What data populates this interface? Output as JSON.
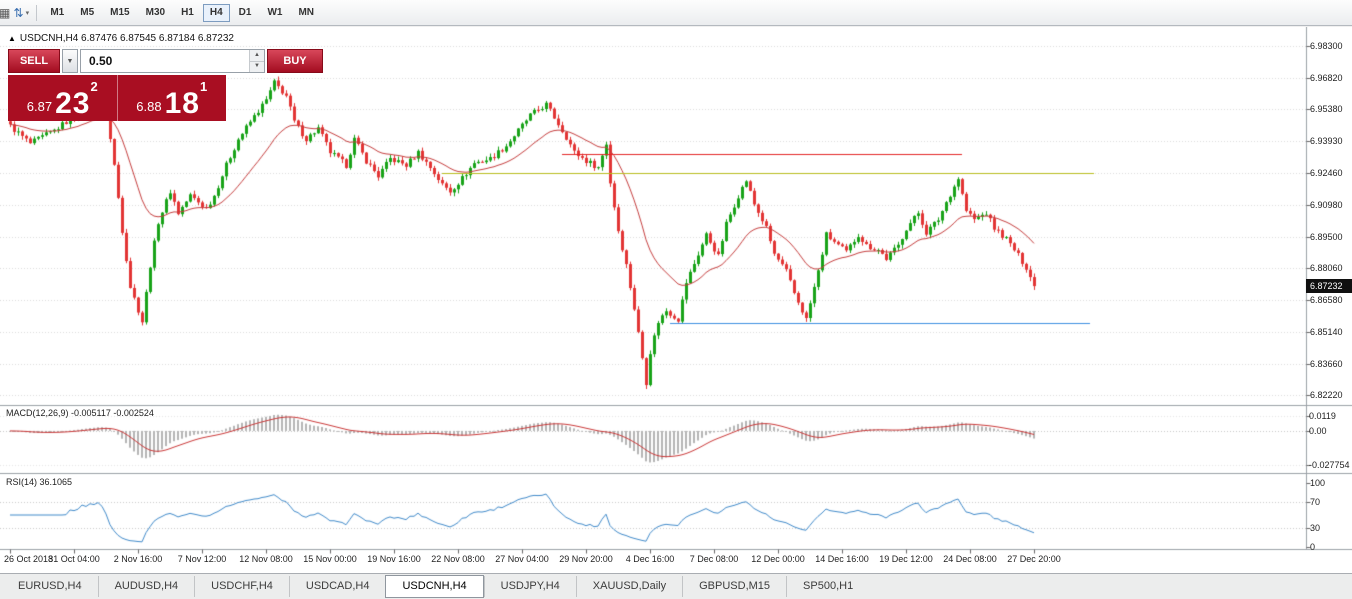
{
  "toolbar": {
    "icons": {
      "templates_glyph": "▦",
      "cursor_glyph": "⇅",
      "caret_glyph": "▾"
    },
    "timeframes": [
      {
        "label": "M1"
      },
      {
        "label": "M5"
      },
      {
        "label": "M15"
      },
      {
        "label": "M30"
      },
      {
        "label": "H1"
      },
      {
        "label": "H4",
        "active": true
      },
      {
        "label": "D1"
      },
      {
        "label": "W1"
      },
      {
        "label": "MN"
      }
    ]
  },
  "chart": {
    "symbol_marker": "▲",
    "title": "USDCNH,H4 6.87476 6.87545 6.87184 6.87232",
    "current_price": "6.87232"
  },
  "trade_panel": {
    "sell_label": "SELL",
    "buy_label": "BUY",
    "volume": "0.50",
    "caret_glyph": "▼",
    "spinner_up": "▲",
    "spinner_down": "▼",
    "bid": {
      "small": "6.87",
      "big": "23",
      "sup": "2"
    },
    "ask": {
      "small": "6.88",
      "big": "18",
      "sup": "1"
    }
  },
  "colors": {
    "candle_up": "#18a318",
    "candle_down": "#e23434",
    "ma_line": "#c43c3c",
    "macd_histogram": "#b5b5b5",
    "macd_signal": "#c93636",
    "rsi_line": "#3f89c9",
    "grid": "#dadada",
    "hline_red": "#e32525",
    "hline_yellow": "#b9bd1d",
    "hline_blue": "#3d8fe0",
    "panel_red": "#a90e22"
  },
  "chart_data": {
    "type": "candlestick",
    "title": "USDCNH,H4",
    "ohlc": {
      "open": 6.87476,
      "high": 6.87545,
      "low": 6.87184,
      "close": 6.87232
    },
    "last_close": 6.87232,
    "num_candles": 257,
    "ylim": [
      6.818,
      6.988
    ],
    "price_ticks": [
      "6.98300",
      "6.96820",
      "6.95380",
      "6.93930",
      "6.92460",
      "6.90980",
      "6.89500",
      "6.88060",
      "6.86580",
      "6.85140",
      "6.83660",
      "6.82220"
    ],
    "close_anchors": [
      [
        0,
        6.946
      ],
      [
        5,
        6.938
      ],
      [
        11,
        6.944
      ],
      [
        17,
        6.952
      ],
      [
        22,
        6.958
      ],
      [
        24,
        6.952
      ],
      [
        26,
        6.928
      ],
      [
        28,
        6.898
      ],
      [
        30,
        6.872
      ],
      [
        33,
        6.856
      ],
      [
        35,
        6.882
      ],
      [
        37,
        6.902
      ],
      [
        40,
        6.916
      ],
      [
        42,
        6.906
      ],
      [
        45,
        6.914
      ],
      [
        49,
        6.908
      ],
      [
        51,
        6.914
      ],
      [
        54,
        6.928
      ],
      [
        57,
        6.94
      ],
      [
        60,
        6.948
      ],
      [
        64,
        6.958
      ],
      [
        66,
        6.966
      ],
      [
        69,
        6.96
      ],
      [
        71,
        6.948
      ],
      [
        74,
        6.94
      ],
      [
        77,
        6.945
      ],
      [
        80,
        6.934
      ],
      [
        84,
        6.928
      ],
      [
        86,
        6.94
      ],
      [
        89,
        6.93
      ],
      [
        92,
        6.923
      ],
      [
        95,
        6.931
      ],
      [
        99,
        6.928
      ],
      [
        102,
        6.934
      ],
      [
        105,
        6.927
      ],
      [
        108,
        6.919
      ],
      [
        110,
        6.916
      ],
      [
        113,
        6.922
      ],
      [
        116,
        6.929
      ],
      [
        120,
        6.931
      ],
      [
        124,
        6.937
      ],
      [
        127,
        6.944
      ],
      [
        130,
        6.951
      ],
      [
        134,
        6.956
      ],
      [
        136,
        6.95
      ],
      [
        139,
        6.941
      ],
      [
        141,
        6.934
      ],
      [
        144,
        6.93
      ],
      [
        147,
        6.927
      ],
      [
        149,
        6.938
      ],
      [
        150,
        6.92
      ],
      [
        152,
        6.898
      ],
      [
        154,
        6.882
      ],
      [
        156,
        6.862
      ],
      [
        159,
        6.828
      ],
      [
        160,
        6.842
      ],
      [
        162,
        6.856
      ],
      [
        164,
        6.861
      ],
      [
        167,
        6.857
      ],
      [
        169,
        6.874
      ],
      [
        172,
        6.887
      ],
      [
        174,
        6.896
      ],
      [
        177,
        6.886
      ],
      [
        179,
        6.901
      ],
      [
        182,
        6.914
      ],
      [
        184,
        6.921
      ],
      [
        186,
        6.91
      ],
      [
        189,
        6.899
      ],
      [
        191,
        6.887
      ],
      [
        194,
        6.879
      ],
      [
        196,
        6.869
      ],
      [
        199,
        6.857
      ],
      [
        202,
        6.879
      ],
      [
        204,
        6.896
      ],
      [
        207,
        6.891
      ],
      [
        209,
        6.888
      ],
      [
        212,
        6.896
      ],
      [
        214,
        6.891
      ],
      [
        217,
        6.889
      ],
      [
        219,
        6.885
      ],
      [
        222,
        6.891
      ],
      [
        224,
        6.899
      ],
      [
        227,
        6.906
      ],
      [
        229,
        6.897
      ],
      [
        232,
        6.903
      ],
      [
        234,
        6.911
      ],
      [
        237,
        6.922
      ],
      [
        239,
        6.907
      ],
      [
        241,
        6.903
      ],
      [
        244,
        6.906
      ],
      [
        246,
        6.899
      ],
      [
        249,
        6.894
      ],
      [
        251,
        6.889
      ],
      [
        254,
        6.881
      ],
      [
        256,
        6.8723
      ]
    ],
    "x_ticks": [
      {
        "i": 0,
        "label": "26 Oct 2018"
      },
      {
        "i": 16,
        "label": "31 Oct 04:00"
      },
      {
        "i": 32,
        "label": "2 Nov 16:00"
      },
      {
        "i": 48,
        "label": "7 Nov 12:00"
      },
      {
        "i": 64,
        "label": "12 Nov 08:00"
      },
      {
        "i": 80,
        "label": "15 Nov 00:00"
      },
      {
        "i": 96,
        "label": "19 Nov 16:00"
      },
      {
        "i": 112,
        "label": "22 Nov 08:00"
      },
      {
        "i": 128,
        "label": "27 Nov 04:00"
      },
      {
        "i": 144,
        "label": "29 Nov 20:00"
      },
      {
        "i": 160,
        "label": "4 Dec 16:00"
      },
      {
        "i": 176,
        "label": "7 Dec 08:00"
      },
      {
        "i": 192,
        "label": "12 Dec 00:00"
      },
      {
        "i": 208,
        "label": "14 Dec 16:00"
      },
      {
        "i": 224,
        "label": "19 Dec 12:00"
      },
      {
        "i": 240,
        "label": "24 Dec 08:00"
      },
      {
        "i": 256,
        "label": "27 Dec 20:00"
      }
    ],
    "overlays": {
      "ma_period": 21,
      "hlines": [
        {
          "price": 6.933,
          "from": 138,
          "to": 238,
          "color": "#e32525"
        },
        {
          "price": 6.9245,
          "from": 108,
          "to": 271,
          "color": "#b9bd1d"
        },
        {
          "price": 6.8555,
          "from": 165,
          "to": 270,
          "color": "#3d8fe0"
        }
      ]
    },
    "macd": {
      "label": "MACD(12,26,9) -0.005117 -0.002524",
      "fast": 12,
      "slow": 26,
      "signal": 9,
      "ylim": [
        -0.0335,
        0.0195
      ],
      "ticks": [
        {
          "value": 0.0119,
          "label": "0.0119"
        },
        {
          "value": 0,
          "label": "0.00"
        },
        {
          "value": -0.027754,
          "label": "-0.027754"
        }
      ]
    },
    "rsi": {
      "label": "RSI(14) 36.1065",
      "period": 14,
      "current": 36.1065,
      "ylim": [
        0,
        100
      ],
      "ticks": [
        {
          "value": 100,
          "label": "100"
        },
        {
          "value": 70,
          "label": "70"
        },
        {
          "value": 30,
          "label": "30"
        },
        {
          "value": 0,
          "label": "0"
        }
      ],
      "levels": [
        70,
        30
      ]
    }
  },
  "tabs": {
    "items": [
      {
        "label": "EURUSD,H4"
      },
      {
        "label": "AUDUSD,H4"
      },
      {
        "label": "USDCHF,H4"
      },
      {
        "label": "USDCAD,H4"
      },
      {
        "label": "USDCNH,H4",
        "active": true
      },
      {
        "label": "USDJPY,H4"
      },
      {
        "label": "XAUUSD,Daily"
      },
      {
        "label": "GBPUSD,M15"
      },
      {
        "label": "SP500,H1"
      }
    ]
  }
}
